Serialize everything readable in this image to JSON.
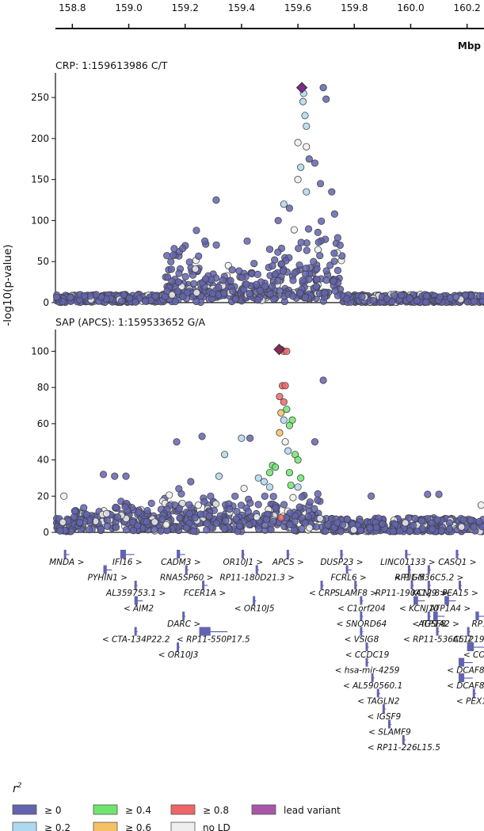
{
  "chart_data": [
    {
      "type": "scatter",
      "title": "CRP: 1:159613986 C/T",
      "xlabel": "Mbp",
      "ylabel": "-log10(p-value)",
      "xlim": [
        158.74,
        160.26
      ],
      "ylim": [
        0,
        280
      ],
      "yticks": [
        0,
        50,
        100,
        150,
        200,
        250
      ],
      "lead_variant": {
        "x": 159.613986,
        "y": 262
      },
      "peaks": [
        {
          "x": 159.25,
          "y": 85
        },
        {
          "x": 159.62,
          "y": 255
        },
        {
          "x": 159.69,
          "y": 262
        }
      ],
      "points": [
        {
          "x": 159.62,
          "y": 255,
          "r2": "≥ 0.2"
        },
        {
          "x": 159.618,
          "y": 245,
          "r2": "≥ 0.2"
        },
        {
          "x": 159.625,
          "y": 228,
          "r2": "≥ 0.2"
        },
        {
          "x": 159.63,
          "y": 215,
          "r2": "≥ 0.2"
        },
        {
          "x": 159.6,
          "y": 195,
          "r2": "no LD"
        },
        {
          "x": 159.63,
          "y": 190,
          "r2": "no LD"
        },
        {
          "x": 159.64,
          "y": 175,
          "r2": "≥ 0"
        },
        {
          "x": 159.66,
          "y": 170,
          "r2": "≥ 0"
        },
        {
          "x": 159.61,
          "y": 165,
          "r2": "≥ 0.2"
        },
        {
          "x": 159.6,
          "y": 150,
          "r2": "no LD"
        },
        {
          "x": 159.55,
          "y": 120,
          "r2": "≥ 0.2"
        },
        {
          "x": 159.57,
          "y": 115,
          "r2": "≥ 0"
        },
        {
          "x": 159.63,
          "y": 135,
          "r2": "≥ 0.2"
        },
        {
          "x": 159.68,
          "y": 145,
          "r2": "≥ 0"
        },
        {
          "x": 159.69,
          "y": 262,
          "r2": "≥ 0"
        },
        {
          "x": 159.7,
          "y": 248,
          "r2": "≥ 0"
        },
        {
          "x": 159.72,
          "y": 135,
          "r2": "≥ 0"
        },
        {
          "x": 159.73,
          "y": 108,
          "r2": "≥ 0"
        },
        {
          "x": 159.31,
          "y": 125,
          "r2": "≥ 0"
        },
        {
          "x": 159.24,
          "y": 88,
          "r2": "≥ 0"
        },
        {
          "x": 159.27,
          "y": 75,
          "r2": "≥ 0"
        },
        {
          "x": 159.42,
          "y": 75,
          "r2": "≥ 0"
        },
        {
          "x": 159.53,
          "y": 100,
          "r2": "≥ 0"
        },
        {
          "x": 159.5,
          "y": 65,
          "r2": "≥ 0"
        }
      ]
    },
    {
      "type": "scatter",
      "title": "SAP (APCS): 1:159533652 G/A",
      "xlabel": "Mbp",
      "ylabel": "-log10(p-value)",
      "xlim": [
        158.74,
        160.26
      ],
      "ylim": [
        0,
        112
      ],
      "yticks": [
        0,
        20,
        40,
        60,
        80,
        100
      ],
      "lead_variant": {
        "x": 159.533652,
        "y": 101
      },
      "points": [
        {
          "x": 159.54,
          "y": 101,
          "r2": "≥ 0.8"
        },
        {
          "x": 159.55,
          "y": 100,
          "r2": "≥ 0.8"
        },
        {
          "x": 159.56,
          "y": 100,
          "r2": "≥ 0.8"
        },
        {
          "x": 159.545,
          "y": 81,
          "r2": "≥ 0.8"
        },
        {
          "x": 159.555,
          "y": 81,
          "r2": "≥ 0.8"
        },
        {
          "x": 159.535,
          "y": 75,
          "r2": "≥ 0.8"
        },
        {
          "x": 159.55,
          "y": 72,
          "r2": "≥ 0.8"
        },
        {
          "x": 159.54,
          "y": 66,
          "r2": "≥ 0.6"
        },
        {
          "x": 159.55,
          "y": 62,
          "r2": "≥ 0.2"
        },
        {
          "x": 159.56,
          "y": 68,
          "r2": "≥ 0.4"
        },
        {
          "x": 159.58,
          "y": 62,
          "r2": "≥ 0.4"
        },
        {
          "x": 159.57,
          "y": 59,
          "r2": "≥ 0.4"
        },
        {
          "x": 159.535,
          "y": 55,
          "r2": "≥ 0.6"
        },
        {
          "x": 159.555,
          "y": 50,
          "r2": "no LD"
        },
        {
          "x": 159.565,
          "y": 45,
          "r2": "≥ 0.2"
        },
        {
          "x": 159.59,
          "y": 43,
          "r2": "≥ 0.4"
        },
        {
          "x": 159.6,
          "y": 40,
          "r2": "≥ 0.4"
        },
        {
          "x": 159.51,
          "y": 37,
          "r2": "≥ 0.4"
        },
        {
          "x": 159.52,
          "y": 36,
          "r2": "≥ 0.4"
        },
        {
          "x": 159.5,
          "y": 33,
          "r2": "≥ 0.4"
        },
        {
          "x": 159.57,
          "y": 33,
          "r2": "≥ 0.4"
        },
        {
          "x": 159.61,
          "y": 30,
          "r2": "≥ 0.4"
        },
        {
          "x": 159.575,
          "y": 26,
          "r2": "≥ 0.4"
        },
        {
          "x": 159.46,
          "y": 30,
          "r2": "≥ 0.2"
        },
        {
          "x": 159.48,
          "y": 28,
          "r2": "≥ 0.2"
        },
        {
          "x": 159.5,
          "y": 25,
          "r2": "≥ 0.2"
        },
        {
          "x": 159.6,
          "y": 25,
          "r2": "≥ 0.2"
        },
        {
          "x": 159.66,
          "y": 50,
          "r2": "≥ 0"
        },
        {
          "x": 159.69,
          "y": 84,
          "r2": "≥ 0"
        },
        {
          "x": 159.54,
          "y": 8,
          "r2": "≥ 0.8"
        },
        {
          "x": 159.43,
          "y": 52,
          "r2": "≥ 0"
        },
        {
          "x": 159.4,
          "y": 52,
          "r2": "≥ 0.2"
        },
        {
          "x": 159.34,
          "y": 43,
          "r2": "≥ 0.2"
        },
        {
          "x": 159.32,
          "y": 31,
          "r2": "≥ 0.2"
        },
        {
          "x": 159.22,
          "y": 28,
          "r2": "≥ 0"
        },
        {
          "x": 159.17,
          "y": 50,
          "r2": "≥ 0"
        },
        {
          "x": 159.26,
          "y": 53,
          "r2": "≥ 0"
        },
        {
          "x": 158.91,
          "y": 32,
          "r2": "≥ 0"
        },
        {
          "x": 158.95,
          "y": 31,
          "r2": "≥ 0"
        },
        {
          "x": 158.99,
          "y": 31,
          "r2": "≥ 0"
        },
        {
          "x": 158.77,
          "y": 20,
          "r2": "no LD"
        },
        {
          "x": 159.86,
          "y": 20,
          "r2": "≥ 0"
        },
        {
          "x": 160.06,
          "y": 21,
          "r2": "≥ 0"
        },
        {
          "x": 160.1,
          "y": 21,
          "r2": "≥ 0"
        },
        {
          "x": 160.25,
          "y": 15,
          "r2": "no LD"
        }
      ]
    }
  ],
  "top_axis": {
    "ticks": [
      158.8,
      159.0,
      159.2,
      159.4,
      159.6,
      159.8,
      160.0,
      160.2
    ],
    "tick_labels": [
      "158.8",
      "159.0",
      "159.2",
      "159.4",
      "159.6",
      "159.8",
      "160.0",
      "160.2"
    ],
    "unit": "Mbp"
  },
  "genes": [
    {
      "label": "MNDA >",
      "start": 158.77,
      "end": 158.79,
      "row": 0
    },
    {
      "label": "IFI16 >",
      "start": 158.97,
      "end": 159.02,
      "row": 0
    },
    {
      "label": "PYHIN1 >",
      "start": 158.91,
      "end": 158.94,
      "row": 1
    },
    {
      "label": "CADM3 >",
      "start": 159.17,
      "end": 159.2,
      "row": 0
    },
    {
      "label": "RNA5SP60 >",
      "start": 159.2,
      "end": 159.205,
      "row": 1
    },
    {
      "label": "AL359753.1 >",
      "start": 159.02,
      "end": 159.025,
      "row": 2
    },
    {
      "label": "FCER1A >",
      "start": 159.26,
      "end": 159.28,
      "row": 2
    },
    {
      "label": "< AIM2",
      "start": 159.02,
      "end": 159.05,
      "row": 3
    },
    {
      "label": "DARC >",
      "start": 159.19,
      "end": 159.2,
      "row": 4
    },
    {
      "label": "< CTA-134P22.2",
      "start": 159.02,
      "end": 159.025,
      "row": 5
    },
    {
      "label": "< RP11-550P17.5",
      "start": 159.25,
      "end": 159.35,
      "row": 5
    },
    {
      "label": "< OR10J3",
      "start": 159.17,
      "end": 159.175,
      "row": 6
    },
    {
      "label": "OR10J1 >",
      "start": 159.4,
      "end": 159.41,
      "row": 0
    },
    {
      "label": "APCS >",
      "start": 159.56,
      "end": 159.565,
      "row": 0
    },
    {
      "label": "RP11-180D21.3 >",
      "start": 159.45,
      "end": 159.455,
      "row": 1
    },
    {
      "label": "< OR10J5",
      "start": 159.44,
      "end": 159.445,
      "row": 3
    },
    {
      "label": "< CRP",
      "start": 159.68,
      "end": 159.685,
      "row": 2
    },
    {
      "label": "DUSP23 >",
      "start": 159.75,
      "end": 159.755,
      "row": 0
    },
    {
      "label": "FCRL6 >",
      "start": 159.77,
      "end": 159.79,
      "row": 1
    },
    {
      "label": "SLAMF8 >",
      "start": 159.8,
      "end": 159.805,
      "row": 2
    },
    {
      "label": "< C1orf204",
      "start": 159.82,
      "end": 159.825,
      "row": 3
    },
    {
      "label": "< SNORD64",
      "start": 159.82,
      "end": 159.825,
      "row": 4
    },
    {
      "label": "< VSIG8",
      "start": 159.82,
      "end": 159.825,
      "row": 5
    },
    {
      "label": "< CCDC19",
      "start": 159.84,
      "end": 159.845,
      "row": 6
    },
    {
      "label": "< hsa-mir-4259",
      "start": 159.84,
      "end": 159.845,
      "row": 7
    },
    {
      "label": "< AL590560.1",
      "start": 159.86,
      "end": 159.865,
      "row": 8
    },
    {
      "label": "< TAGLN2",
      "start": 159.88,
      "end": 159.885,
      "row": 9
    },
    {
      "label": "< IGSF9",
      "start": 159.9,
      "end": 159.905,
      "row": 10
    },
    {
      "label": "< SLAMF9",
      "start": 159.92,
      "end": 159.925,
      "row": 11
    },
    {
      "label": "< RP11-226L15.5",
      "start": 159.97,
      "end": 159.975,
      "row": 12
    },
    {
      "label": "LINC01133 >",
      "start": 159.98,
      "end": 160.0,
      "row": 0
    },
    {
      "label": "< PIGM",
      "start": 159.99,
      "end": 159.995,
      "row": 1
    },
    {
      "label": "RP11-190A12.8 >",
      "start": 160.0,
      "end": 160.005,
      "row": 2
    },
    {
      "label": "< KCNJ10",
      "start": 160.01,
      "end": 160.05,
      "row": 3
    },
    {
      "label": "< IGSF8",
      "start": 160.06,
      "end": 160.065,
      "row": 4
    },
    {
      "label": "< RP11-536C5.7",
      "start": 160.09,
      "end": 160.095,
      "row": 5
    },
    {
      "label": "CASQ1 >",
      "start": 160.16,
      "end": 160.17,
      "row": 0
    },
    {
      "label": "RP11-536C5.2 >",
      "start": 160.06,
      "end": 160.065,
      "row": 1
    },
    {
      "label": "KCNJ9 >",
      "start": 160.06,
      "end": 160.065,
      "row": 2
    },
    {
      "label": "PEA15 >",
      "start": 160.17,
      "end": 160.175,
      "row": 2
    },
    {
      "label": "ATP1A4 >",
      "start": 160.12,
      "end": 160.16,
      "row": 3
    },
    {
      "label": "ATP1A2 >",
      "start": 160.08,
      "end": 160.12,
      "row": 4
    },
    {
      "label": "RP1",
      "start": 160.23,
      "end": 160.26,
      "row": 4
    },
    {
      "label": "AL1219",
      "start": 160.2,
      "end": 160.205,
      "row": 5
    },
    {
      "label": "< COI",
      "start": 160.2,
      "end": 160.26,
      "row": 6
    },
    {
      "label": "< DCAF8",
      "start": 160.17,
      "end": 160.22,
      "row": 7
    },
    {
      "label": "< DCAF8",
      "start": 160.17,
      "end": 160.22,
      "row": 8
    },
    {
      "label": "< PEX19",
      "start": 160.22,
      "end": 160.225,
      "row": 9
    }
  ],
  "legend": {
    "title": "r",
    "title_sup": "2",
    "items": [
      {
        "label": "≥ 0",
        "color": "#6364b0"
      },
      {
        "label": "≥ 0.2",
        "color": "#aed8f0"
      },
      {
        "label": "≥ 0.4",
        "color": "#6ee66e"
      },
      {
        "label": "≥ 0.6",
        "color": "#f5c066"
      },
      {
        "label": "≥ 0.8",
        "color": "#ef6666"
      },
      {
        "label": "no LD",
        "color": "#eeeeee"
      },
      {
        "label": "lead variant",
        "color": "#a956a6"
      }
    ]
  }
}
